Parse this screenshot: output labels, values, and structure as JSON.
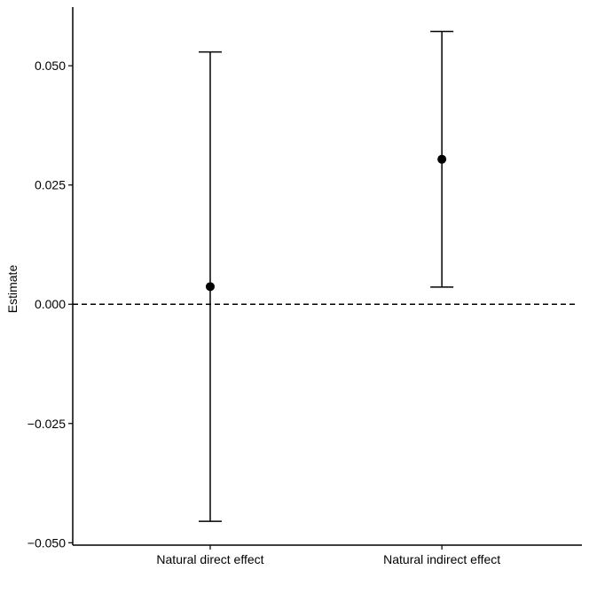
{
  "chart_data": {
    "type": "scatter",
    "title": "",
    "xlabel": "",
    "ylabel": "Estimate",
    "categories": [
      "Natural direct effect",
      "Natural indirect effect"
    ],
    "series": [
      {
        "estimates": [
          0.0037,
          0.0304
        ],
        "ci_lower": [
          -0.0455,
          0.0036
        ],
        "ci_upper": [
          0.0529,
          0.0572
        ]
      }
    ],
    "reference_line": {
      "y": 0.0,
      "style": "dashed"
    },
    "ylim": [
      -0.0505,
      0.0623
    ],
    "yticks": [
      -0.05,
      -0.025,
      0.0,
      0.025,
      0.05
    ],
    "ytick_labels": [
      "−0.050",
      "−0.025",
      "0.000",
      "0.025",
      "0.050"
    ],
    "grid": false,
    "legend": "none",
    "colors": {
      "points": "#000000",
      "errorbars": "#000000",
      "axis": "#000000"
    }
  }
}
